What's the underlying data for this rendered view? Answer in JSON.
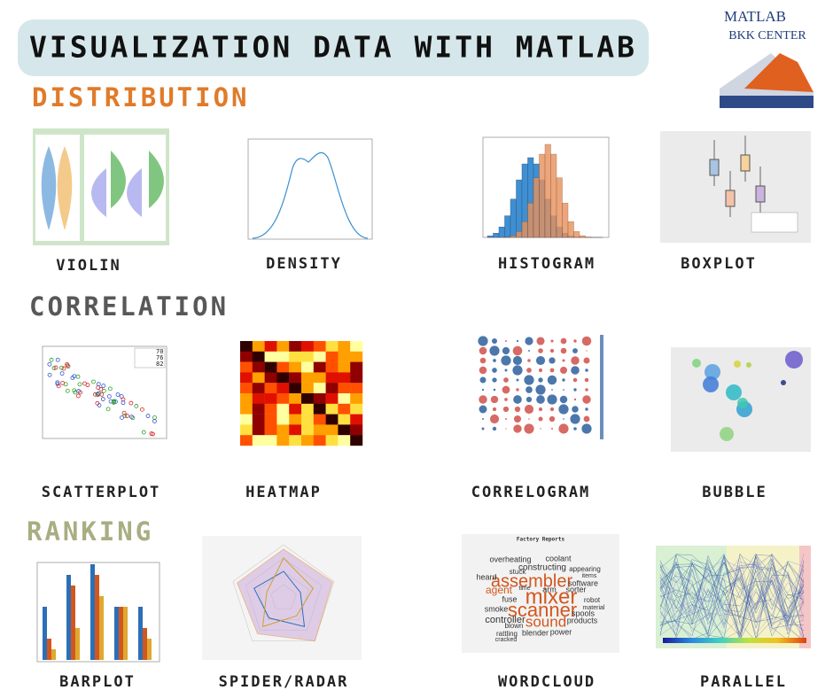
{
  "header": {
    "title": "VISUALIZATION DATA WITH MATLAB",
    "logo": [
      "MATLAB",
      "BKK CENTER"
    ]
  },
  "sections": [
    {
      "title": "DISTRIBUTION",
      "items": [
        "VIOLIN",
        "DENSITY",
        "HISTOGRAM",
        "BOXPLOT"
      ]
    },
    {
      "title": "CORRELATION",
      "items": [
        "SCATTERPLOT",
        "HEATMAP",
        "CORRELOGRAM",
        "BUBBLE"
      ]
    },
    {
      "title": "RANKING",
      "items": [
        "BARPLOT",
        "SPIDER/RADAR",
        "WORDCLOUD",
        "PARALLEL"
      ]
    }
  ],
  "scatter_legend": [
    "70",
    "76",
    "82"
  ],
  "wordcloud": {
    "title": "Factory Reports",
    "words": [
      "assembler",
      "mixer",
      "scanner",
      "sound",
      "agent",
      "controller",
      "constructing",
      "coolant",
      "overheating",
      "heard",
      "smoke",
      "spools",
      "products",
      "software",
      "sorter",
      "robot",
      "blender",
      "power",
      "fuse",
      "stuck",
      "arm",
      "time",
      "items",
      "appearing",
      "blown",
      "rattling",
      "cracked",
      "material"
    ]
  }
}
